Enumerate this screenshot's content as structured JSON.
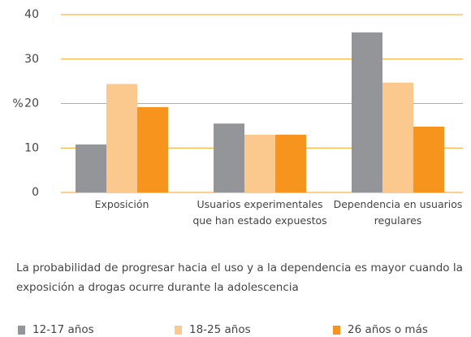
{
  "chart_data": {
    "type": "bar",
    "y_label": "%",
    "categories": [
      "Exposición",
      "Usuarios experimentales que han estado expuestos",
      "Dependencia en usuarios regulares"
    ],
    "series": [
      {
        "name": "12-17 años",
        "color": "#939598",
        "values": [
          10.8,
          15.5,
          36
        ]
      },
      {
        "name": "18-25 años",
        "color": "#fbc98e",
        "values": [
          24.4,
          13,
          24.7
        ]
      },
      {
        "name": "26 años o más",
        "color": "#f7941d",
        "values": [
          19.2,
          13,
          14.8
        ]
      }
    ],
    "ylim": [
      0,
      40
    ],
    "yticks": [
      0,
      10,
      20,
      30,
      40
    ],
    "grid": true,
    "grid_color": "#f7a21b",
    "caption": "La probabilidad de progresar hacia el uso y a la dependencia es mayor cuando la exposición a drogas ocurre durante la adolescencia",
    "legend": "bottom"
  }
}
